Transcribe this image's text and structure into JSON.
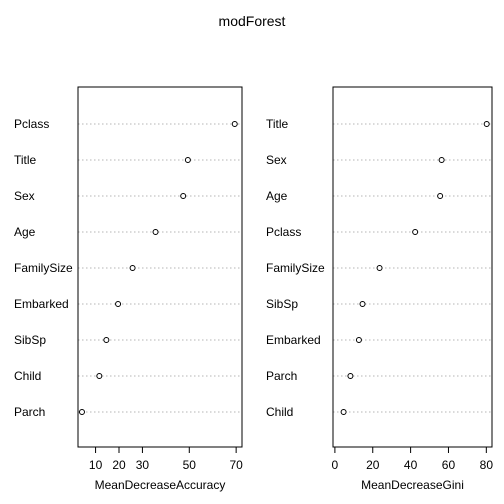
{
  "chart_data": {
    "title": "modForest",
    "panels": [
      {
        "type": "scatter",
        "subtype": "dotchart",
        "xlabel": "MeanDecreaseAccuracy",
        "xlim": [
          2.5,
          72.5
        ],
        "xticks": [
          10,
          20,
          30,
          50,
          70
        ],
        "grid": "horizontal dotted",
        "categories": [
          "Pclass",
          "Title",
          "Sex",
          "Age",
          "FamilySize",
          "Embarked",
          "SibSp",
          "Child",
          "Parch"
        ],
        "values": [
          69.4,
          49.4,
          47.4,
          35.6,
          25.8,
          19.6,
          14.6,
          11.6,
          4.2
        ]
      },
      {
        "type": "scatter",
        "subtype": "dotchart",
        "xlabel": "MeanDecreaseGini",
        "xlim": [
          -1,
          83
        ],
        "xticks": [
          0,
          20,
          40,
          60,
          80
        ],
        "grid": "horizontal dotted",
        "categories": [
          "Title",
          "Sex",
          "Age",
          "Pclass",
          "FamilySize",
          "SibSp",
          "Embarked",
          "Parch",
          "Child"
        ],
        "values": [
          80.2,
          56.4,
          55.6,
          42.4,
          23.6,
          14.6,
          12.7,
          8.2,
          4.6
        ]
      }
    ]
  }
}
